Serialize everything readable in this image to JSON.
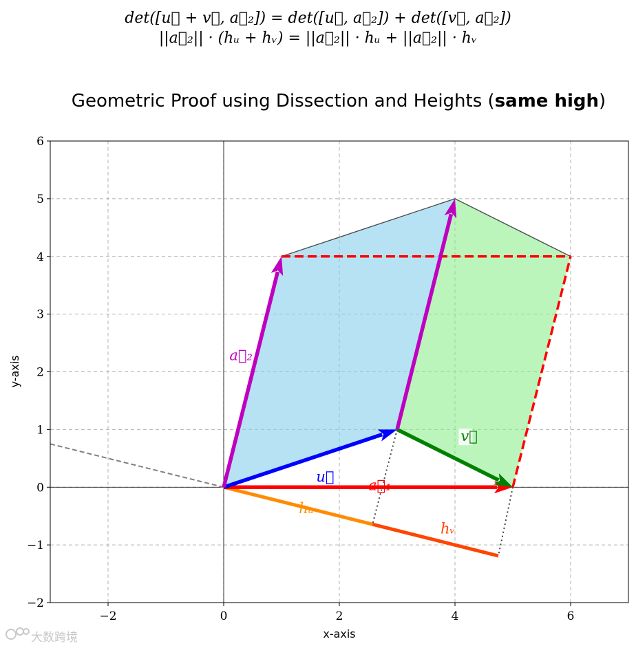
{
  "equations": {
    "line1": "det([u⃗ + v⃗, a⃗₂]) = det([u⃗, a⃗₂]) + det([v⃗, a⃗₂])",
    "line2": "||a⃗₂|| · (hᵤ + hᵥ) = ||a⃗₂|| · hᵤ + ||a⃗₂|| · hᵥ"
  },
  "title": {
    "prefix": "Geometric Proof using Dissection and Heights (",
    "bold": "same high",
    "suffix": ")"
  },
  "watermark": "大数跨境",
  "chart_data": {
    "type": "line",
    "xlabel": "x-axis",
    "ylabel": "y-axis",
    "xlim": [
      -3,
      7
    ],
    "ylim": [
      -2,
      6
    ],
    "xticks": [
      -2,
      0,
      2,
      4,
      6
    ],
    "yticks": [
      -2,
      -1,
      0,
      1,
      2,
      3,
      4,
      5,
      6
    ],
    "xtick_labels": [
      "−2",
      "0",
      "2",
      "4",
      "6"
    ],
    "ytick_labels": [
      "−2",
      "−1",
      "0",
      "1",
      "2",
      "3",
      "4",
      "5",
      "6"
    ],
    "grid": true,
    "polygons": [
      {
        "name": "u-parallelogram",
        "points": [
          [
            0,
            0
          ],
          [
            3,
            1
          ],
          [
            4,
            5
          ],
          [
            1,
            4
          ]
        ],
        "color": "#87ceeb"
      },
      {
        "name": "v-parallelogram",
        "points": [
          [
            3,
            1
          ],
          [
            5,
            0
          ],
          [
            6,
            4
          ],
          [
            4,
            5
          ]
        ],
        "color": "#90ee90"
      }
    ],
    "vectors": [
      {
        "name": "a2",
        "label": "a⃗₂",
        "from": [
          0,
          0
        ],
        "to": [
          1,
          4
        ],
        "color": "#bf00bf",
        "label_at": [
          0.1,
          2.2
        ]
      },
      {
        "name": "u",
        "label": "u⃗",
        "from": [
          0,
          0
        ],
        "to": [
          3,
          1
        ],
        "color": "#0000ff",
        "label_at": [
          1.6,
          0.1
        ]
      },
      {
        "name": "v",
        "label": "v⃗",
        "from": [
          3,
          1
        ],
        "to": [
          5,
          0
        ],
        "color": "#008000",
        "label_at": [
          4.1,
          0.8
        ]
      },
      {
        "name": "a1",
        "label": "a⃗₁",
        "from": [
          0,
          0
        ],
        "to": [
          5,
          0
        ],
        "color": "#ff0000",
        "label_at": [
          2.5,
          -0.05
        ]
      },
      {
        "name": "a2-shifted",
        "label": "",
        "from": [
          3,
          1
        ],
        "to": [
          4,
          5
        ],
        "color": "#bf00bf",
        "label_at": null
      }
    ],
    "dashed_red": [
      [
        [
          1,
          4
        ],
        [
          6,
          4
        ]
      ],
      [
        [
          5,
          0
        ],
        [
          6,
          4
        ]
      ]
    ],
    "outline": [
      [
        [
          1,
          4
        ],
        [
          4,
          5
        ]
      ],
      [
        [
          4,
          5
        ],
        [
          6,
          4
        ]
      ]
    ],
    "normal_line": [
      [
        -3,
        0.75
      ],
      [
        0,
        0
      ]
    ],
    "heights": [
      {
        "name": "h_u",
        "label": "hᵤ",
        "from": [
          0,
          0
        ],
        "to": [
          2.574,
          -0.643
        ],
        "color": "#ff8c00",
        "label_at": [
          1.3,
          -0.45
        ]
      },
      {
        "name": "h_v",
        "label": "hᵥ",
        "from": [
          2.574,
          -0.643
        ],
        "to": [
          4.75,
          -1.19
        ],
        "color": "#ff4500",
        "label_at": [
          3.75,
          -0.8
        ]
      }
    ],
    "projections": [
      [
        [
          3,
          1
        ],
        [
          2.574,
          -0.643
        ]
      ],
      [
        [
          5,
          0
        ],
        [
          4.75,
          -1.19
        ]
      ]
    ]
  }
}
